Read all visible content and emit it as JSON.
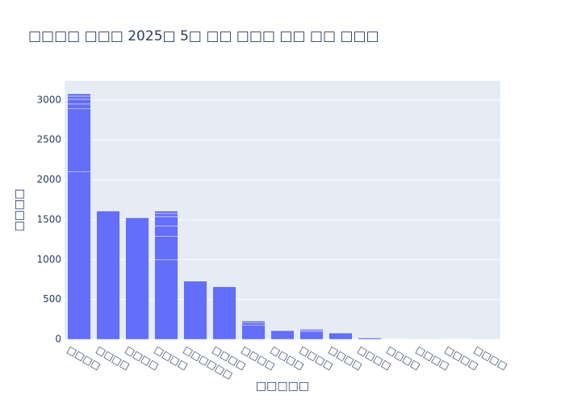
{
  "chart_data": {
    "type": "stacked-bar",
    "title": "□□□□ □□□ 2025□ 5□ □□ □□□ □□ □□ □□□",
    "x_label": "□□□□□",
    "y_label": "□□□□",
    "categories": [
      "□□□□",
      "□□□□",
      "□□□□",
      "□□□□",
      "□□□□□□",
      "□□□□",
      "□□□□",
      "□□□□",
      "□□□□",
      "□□□□",
      "□□□□",
      "□□□□",
      "□□□□",
      "□□□□",
      "□□□□"
    ],
    "values": [
      [
        2100,
        790,
        60,
        60,
        40,
        30
      ],
      [
        1610
      ],
      [
        1525
      ],
      [
        1000,
        290,
        130,
        120,
        40,
        30
      ],
      [
        730
      ],
      [
        660
      ],
      [
        180,
        25,
        25
      ],
      [
        110
      ],
      [
        100,
        15,
        15
      ],
      [
        80
      ],
      [
        18
      ],
      [
        5
      ],
      [
        3
      ],
      [
        5
      ],
      [
        2
      ]
    ],
    "color": "#636efa",
    "ylim": [
      0,
      3242
    ],
    "yticks": [
      0,
      500,
      1000,
      1500,
      2000,
      2500,
      3000
    ],
    "grid": true
  }
}
